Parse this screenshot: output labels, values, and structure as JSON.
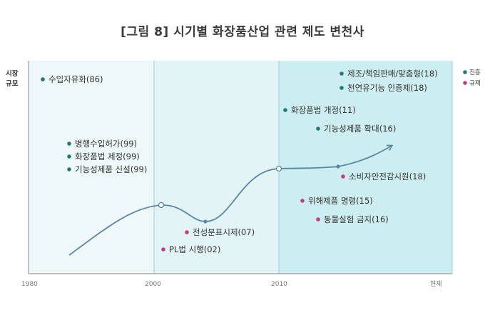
{
  "title": "[그림 8] 시기별 화장품산업 관련 제도 변천사",
  "colors": {
    "promotion": "#1f7a78",
    "regulation": "#c43d7f",
    "curve": "#5e86a2",
    "band1": "#eef8f9",
    "band2": "#e2f4f6",
    "band3": "#cdeef0"
  },
  "chart_data": {
    "type": "line",
    "title": "[그림 8] 시기별 화장품산업 관련 제도 변천사",
    "ylabel": "시장 규모",
    "xlabel": "",
    "x_ticks": [
      "1980",
      "2000",
      "2010",
      "현재"
    ],
    "legend": {
      "position": "top-right",
      "entries": [
        {
          "name": "진흥",
          "kind": "promotion"
        },
        {
          "name": "규제",
          "kind": "regulation"
        }
      ]
    },
    "grid": false,
    "annotations": [
      {
        "text": "수입자유화(86)",
        "kind": "promotion",
        "year": 1986
      },
      {
        "text": "병행수입허가(99)",
        "kind": "promotion",
        "year": 1999
      },
      {
        "text": "화장품법 제정(99)",
        "kind": "promotion",
        "year": 1999
      },
      {
        "text": "기능성제품 신설(99)",
        "kind": "promotion",
        "year": 1999
      },
      {
        "text": "전성분표시제(07)",
        "kind": "regulation",
        "year": 2007
      },
      {
        "text": "PL법 시행(02)",
        "kind": "regulation",
        "year": 2002
      },
      {
        "text": "화장품법 개정(11)",
        "kind": "promotion",
        "year": 2011
      },
      {
        "text": "기능성제품 확대(16)",
        "kind": "promotion",
        "year": 2016
      },
      {
        "text": "제조/책임판매/맞춤형(18)",
        "kind": "promotion",
        "year": 2018
      },
      {
        "text": "천연유기능 인증제(18)",
        "kind": "promotion",
        "year": 2018
      },
      {
        "text": "소비자안전감시원(18)",
        "kind": "regulation",
        "year": 2018
      },
      {
        "text": "위해제품 명령(15)",
        "kind": "regulation",
        "year": 2015
      },
      {
        "text": "동물실험 금지(16)",
        "kind": "regulation",
        "year": 2016
      }
    ]
  }
}
